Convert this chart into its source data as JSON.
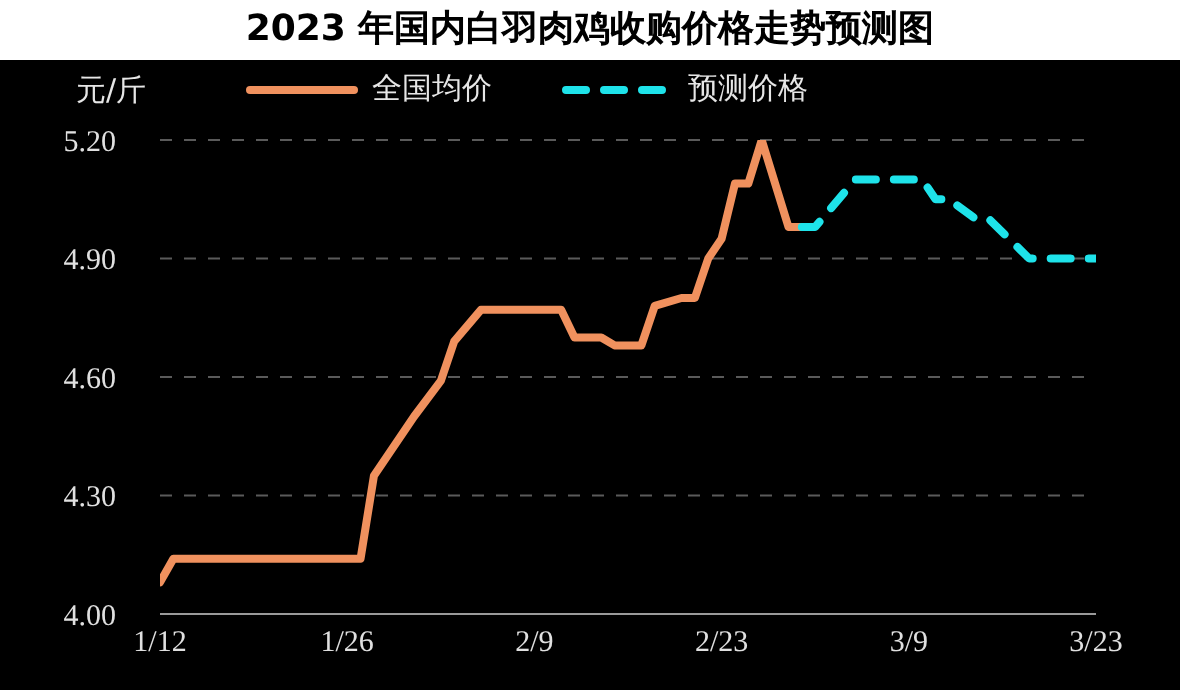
{
  "chart_data": {
    "type": "line",
    "title": "2023 年国内白羽肉鸡收购价格走势预测图",
    "ylabel": "元/斤",
    "xlim": [
      "--01-12",
      "--03-23"
    ],
    "xticks": [
      {
        "value": "--01-12",
        "label": "1/12"
      },
      {
        "value": "--01-26",
        "label": "1/26"
      },
      {
        "value": "--02-09",
        "label": "2/9"
      },
      {
        "value": "--02-23",
        "label": "2/23"
      },
      {
        "value": "--03-09",
        "label": "3/9"
      },
      {
        "value": "--03-23",
        "label": "3/23"
      }
    ],
    "ylim": [
      4.0,
      5.2
    ],
    "yticks": [
      {
        "value": 4.0,
        "label": "4.00"
      },
      {
        "value": 4.3,
        "label": "4.30"
      },
      {
        "value": 4.6,
        "label": "4.60"
      },
      {
        "value": 4.9,
        "label": "4.90"
      },
      {
        "value": 5.2,
        "label": "5.20"
      }
    ],
    "grid": "y",
    "legend": "top",
    "series": [
      {
        "name": "全国均价",
        "color": "#f0915e",
        "line_style": "solid",
        "x": [
          "--01-12",
          "--01-13",
          "--01-27",
          "--01-28",
          "--01-31",
          "--02-02",
          "--02-03",
          "--02-05",
          "--02-11",
          "--02-12",
          "--02-14",
          "--02-15",
          "--02-17",
          "--02-18",
          "--02-20",
          "--02-21",
          "--02-22",
          "--02-23",
          "--02-24",
          "--02-25",
          "--02-26",
          "--02-28",
          "--03-01"
        ],
        "values": [
          4.08,
          4.14,
          4.14,
          4.35,
          4.5,
          4.59,
          4.69,
          4.77,
          4.77,
          4.7,
          4.7,
          4.68,
          4.68,
          4.78,
          4.8,
          4.8,
          4.9,
          4.95,
          5.09,
          5.09,
          5.2,
          4.98,
          4.98
        ]
      },
      {
        "name": "预测价格",
        "color": "#1ee3ea",
        "line_style": "dashed",
        "x": [
          "--03-01",
          "--03-02",
          "--03-05",
          "--03-10",
          "--03-11",
          "--03-12",
          "--03-14",
          "--03-15",
          "--03-18",
          "--03-23"
        ],
        "values": [
          4.98,
          4.98,
          5.1,
          5.1,
          5.05,
          5.05,
          5.0,
          5.0,
          4.9,
          4.9
        ]
      }
    ]
  }
}
